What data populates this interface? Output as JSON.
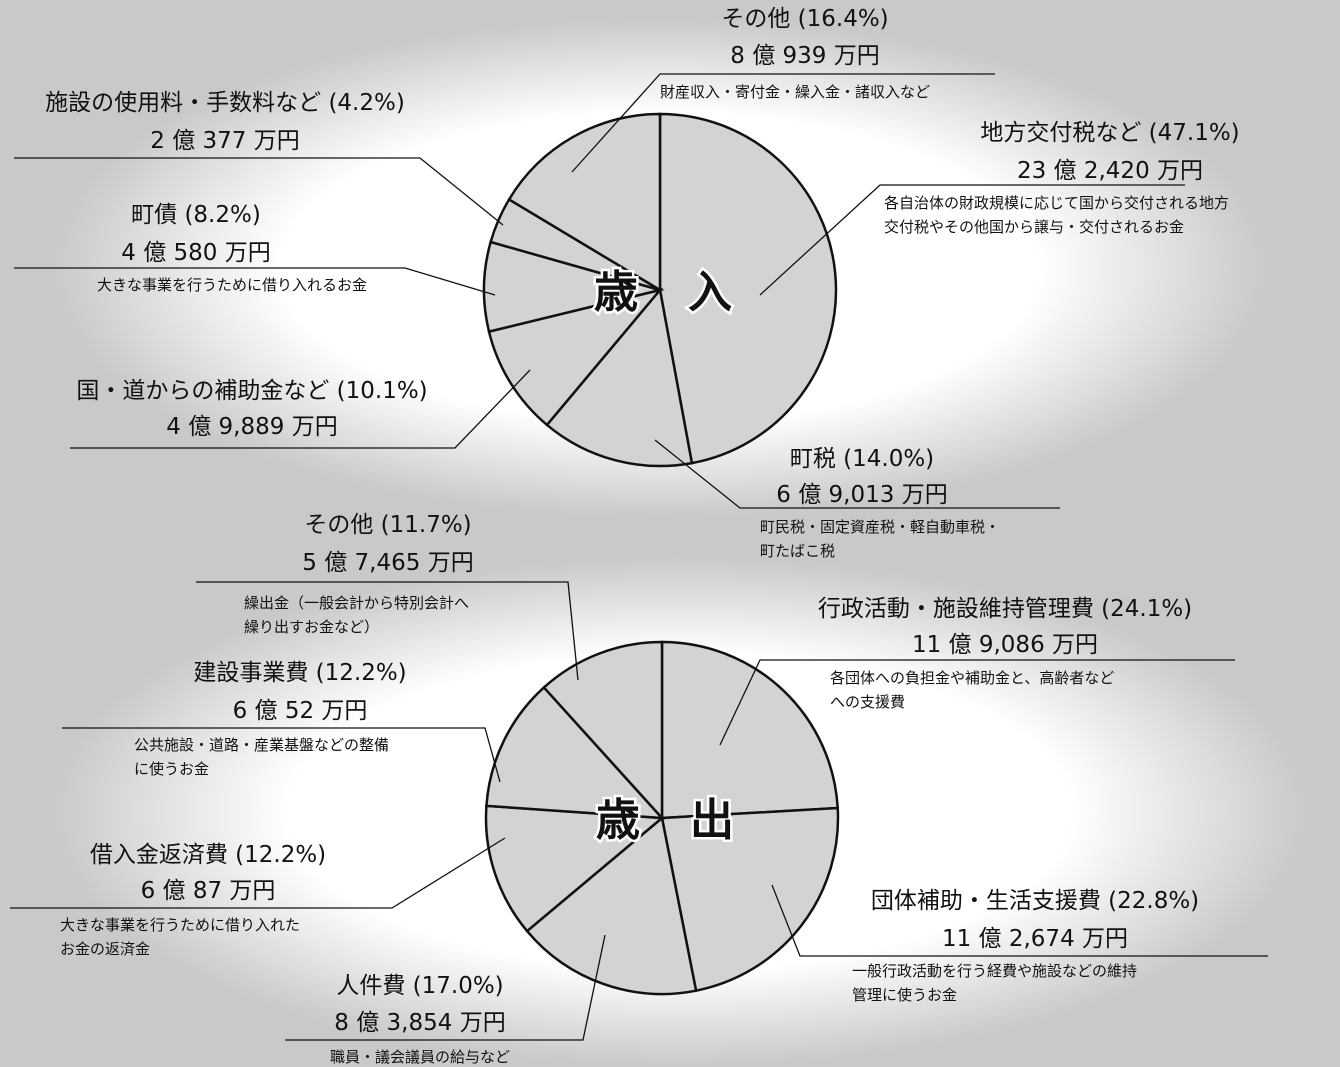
{
  "chart_data": [
    {
      "type": "pie",
      "center_label": "歳　入",
      "slices": [
        {
          "label": "地方交付税など (47.1%)",
          "amount": "23 億 2,420 万円",
          "percent": 47.1,
          "note": [
            "各自治体の財政規模に応じて国から交付される地方",
            "交付税やその他国から譲与・交付されるお金"
          ]
        },
        {
          "label": "町税 (14.0%)",
          "amount": "6 億 9,013 万円",
          "percent": 14.0,
          "note": [
            "町民税・固定資産税・軽自動車税・",
            "町たばこ税"
          ]
        },
        {
          "label": "国・道からの補助金など (10.1%)",
          "amount": "4 億 9,889 万円",
          "percent": 10.1,
          "note": []
        },
        {
          "label": "町債 (8.2%)",
          "amount": "4 億 580 万円",
          "percent": 8.2,
          "note": [
            "大きな事業を行うために借り入れるお金"
          ]
        },
        {
          "label": "施設の使用料・手数料など (4.2%)",
          "amount": "2 億 377 万円",
          "percent": 4.2,
          "note": []
        },
        {
          "label": "その他 (16.4%)",
          "amount": "8 億 939 万円",
          "percent": 16.4,
          "note": [
            "財産収入・寄付金・繰入金・諸収入など"
          ]
        }
      ]
    },
    {
      "type": "pie",
      "center_label": "歳　出",
      "slices": [
        {
          "label": "行政活動・施設維持管理費 (24.1%)",
          "amount": "11 億 9,086 万円",
          "percent": 24.1,
          "note": [
            "各団体への負担金や補助金と、高齢者など",
            "への支援費"
          ]
        },
        {
          "label": "団体補助・生活支援費 (22.8%)",
          "amount": "11 億 2,674 万円",
          "percent": 22.8,
          "note": [
            "一般行政活動を行う経費や施設などの維持",
            "管理に使うお金"
          ]
        },
        {
          "label": "人件費 (17.0%)",
          "amount": "8 億 3,854 万円",
          "percent": 17.0,
          "note": [
            "職員・議会議員の給与など"
          ]
        },
        {
          "label": "借入金返済費 (12.2%)",
          "amount": "6 億 87 万円",
          "percent": 12.2,
          "note": [
            "大きな事業を行うために借り入れた",
            "お金の返済金"
          ]
        },
        {
          "label": "建設事業費 (12.2%)",
          "amount": "6 億 52 万円",
          "percent": 12.2,
          "note": [
            "公共施設・道路・産業基盤などの整備",
            "に使うお金"
          ]
        },
        {
          "label": "その他 (11.7%)",
          "amount": "5 億 7,465 万円",
          "percent": 11.7,
          "note": [
            "繰出金（一般会計から特別会計へ",
            "繰り出すお金など）"
          ]
        }
      ]
    }
  ],
  "colors": {
    "background": "#c9c9c9",
    "slice": "#d3d3d3",
    "glow": "#ffffff",
    "line": "#111111"
  }
}
